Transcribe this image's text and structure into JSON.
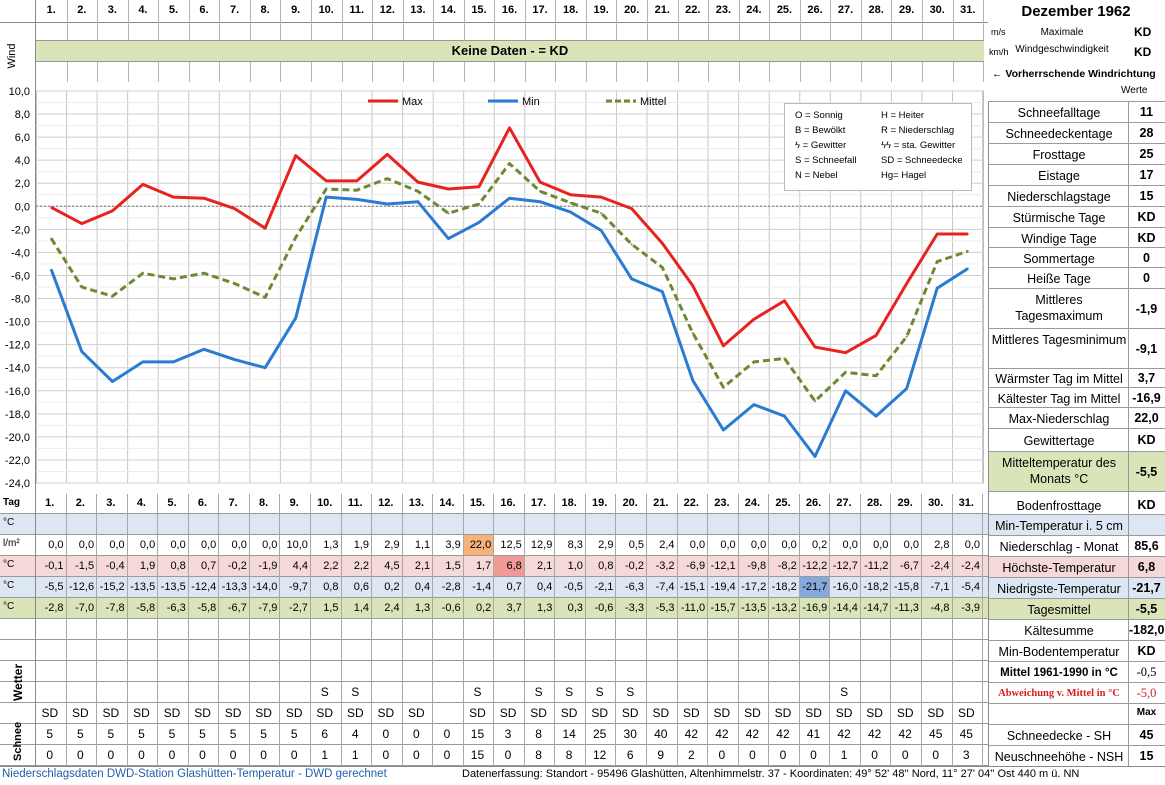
{
  "days": [
    "1.",
    "2.",
    "3.",
    "4.",
    "5.",
    "6.",
    "7.",
    "8.",
    "9.",
    "10.",
    "11.",
    "12.",
    "13.",
    "14.",
    "15.",
    "16.",
    "17.",
    "18.",
    "19.",
    "20.",
    "21.",
    "22.",
    "23.",
    "24.",
    "25.",
    "26.",
    "27.",
    "28.",
    "29.",
    "30.",
    "31."
  ],
  "header": {
    "title": "Dezember 1962",
    "wind_label": "Wind",
    "wind_banner": "Keine Daten -  = KD",
    "unit_ms": "m/s",
    "unit_kmh": "km/h",
    "max_wind_label_1": "Maximale",
    "max_wind_label_2": "Windgeschwindigkeit",
    "max_wind_ms": "KD",
    "max_wind_kmh": "KD",
    "wind_direction_label": "←  Vorherrschende Windrichtung",
    "werte_label": "Werte"
  },
  "legend": {
    "max": "Max",
    "min": "Min",
    "mittel": "Mittel",
    "symbols": [
      [
        "O = Sonnig",
        "H = Heiter"
      ],
      [
        "B = Bewölkt",
        "R = Niederschlag"
      ],
      [
        "ϟ = Gewitter",
        "ϟϟ = sta. Gewitter"
      ],
      [
        "S = Schneefall",
        "SD = Schneedecke"
      ],
      [
        "N = Nebel",
        "Hg= Hagel"
      ]
    ]
  },
  "chart_data": {
    "type": "line",
    "title": "Dezember 1962",
    "x": [
      "1.",
      "2.",
      "3.",
      "4.",
      "5.",
      "6.",
      "7.",
      "8.",
      "9.",
      "10.",
      "11.",
      "12.",
      "13.",
      "14.",
      "15.",
      "16.",
      "17.",
      "18.",
      "19.",
      "20.",
      "21.",
      "22.",
      "23.",
      "24.",
      "25.",
      "26.",
      "27.",
      "28.",
      "29.",
      "30.",
      "31."
    ],
    "ylim": [
      -24,
      10
    ],
    "yticks": [
      "10,0",
      "8,0",
      "6,0",
      "4,0",
      "2,0",
      "0,0",
      "-2,0",
      "-4,0",
      "-6,0",
      "-8,0",
      "-10,0",
      "-12,0",
      "-14,0",
      "-16,0",
      "-18,0",
      "-20,0",
      "-22,0",
      "-24,0"
    ],
    "series": [
      {
        "name": "Max",
        "color": "#e8231f",
        "values": [
          -0.1,
          -1.5,
          -0.4,
          1.9,
          0.8,
          0.7,
          -0.2,
          -1.9,
          4.4,
          2.2,
          2.2,
          4.5,
          2.1,
          1.5,
          1.7,
          6.8,
          2.1,
          1.0,
          0.8,
          -0.2,
          -3.2,
          -6.9,
          -12.1,
          -9.8,
          -8.2,
          -12.2,
          -12.7,
          -11.2,
          -6.7,
          -2.4,
          -2.4
        ]
      },
      {
        "name": "Min",
        "color": "#2b7bd0",
        "values": [
          -5.5,
          -12.6,
          -15.2,
          -13.5,
          -13.5,
          -12.4,
          -13.3,
          -14.0,
          -9.7,
          0.8,
          0.6,
          0.2,
          0.4,
          -2.8,
          -1.4,
          0.7,
          0.4,
          -0.5,
          -2.1,
          -6.3,
          -7.4,
          -15.1,
          -19.4,
          -17.2,
          -18.2,
          -21.7,
          -16.0,
          -18.2,
          -15.8,
          -7.1,
          -5.4
        ]
      },
      {
        "name": "Mittel",
        "color": "#6d8a32",
        "values": [
          -2.8,
          -7.0,
          -7.8,
          -5.8,
          -6.3,
          -5.8,
          -6.7,
          -7.9,
          -2.7,
          1.5,
          1.4,
          2.4,
          1.3,
          -0.6,
          0.2,
          3.7,
          1.3,
          0.3,
          -0.6,
          -3.3,
          -5.3,
          -11.0,
          -15.7,
          -13.5,
          -13.2,
          -16.9,
          -14.4,
          -14.7,
          -11.3,
          -4.8,
          -3.9
        ]
      }
    ]
  },
  "table": {
    "tag_label": "Tag",
    "unit_c": "°C",
    "unit_precip": "l/m²",
    "precip": [
      "0,0",
      "0,0",
      "0,0",
      "0,0",
      "0,0",
      "0,0",
      "0,0",
      "0,0",
      "10,0",
      "1,3",
      "1,9",
      "2,9",
      "1,1",
      "3,9",
      "22,0",
      "12,5",
      "12,9",
      "8,3",
      "2,9",
      "0,5",
      "2,4",
      "0,0",
      "0,0",
      "0,0",
      "0,0",
      "0,2",
      "0,0",
      "0,0",
      "0,0",
      "2,8",
      "0,0"
    ],
    "max": [
      "-0,1",
      "-1,5",
      "-0,4",
      "1,9",
      "0,8",
      "0,7",
      "-0,2",
      "-1,9",
      "4,4",
      "2,2",
      "2,2",
      "4,5",
      "2,1",
      "1,5",
      "1,7",
      "6,8",
      "2,1",
      "1,0",
      "0,8",
      "-0,2",
      "-3,2",
      "-6,9",
      "-12,1",
      "-9,8",
      "-8,2",
      "-12,2",
      "-12,7",
      "-11,2",
      "-6,7",
      "-2,4",
      "-2,4"
    ],
    "min": [
      "-5,5",
      "-12,6",
      "-15,2",
      "-13,5",
      "-13,5",
      "-12,4",
      "-13,3",
      "-14,0",
      "-9,7",
      "0,8",
      "0,6",
      "0,2",
      "0,4",
      "-2,8",
      "-1,4",
      "0,7",
      "0,4",
      "-0,5",
      "-2,1",
      "-6,3",
      "-7,4",
      "-15,1",
      "-19,4",
      "-17,2",
      "-18,2",
      "-21,7",
      "-16,0",
      "-18,2",
      "-15,8",
      "-7,1",
      "-5,4"
    ],
    "mean": [
      "-2,8",
      "-7,0",
      "-7,8",
      "-5,8",
      "-6,3",
      "-5,8",
      "-6,7",
      "-7,9",
      "-2,7",
      "1,5",
      "1,4",
      "2,4",
      "1,3",
      "-0,6",
      "0,2",
      "3,7",
      "1,3",
      "0,3",
      "-0,6",
      "-3,3",
      "-5,3",
      "-11,0",
      "-15,7",
      "-13,5",
      "-13,2",
      "-16,9",
      "-14,4",
      "-14,7",
      "-11,3",
      "-4,8",
      "-3,9"
    ],
    "weather_label": "Wetter",
    "weather_s": [
      "",
      "",
      "",
      "",
      "",
      "",
      "",
      "",
      "",
      "S",
      "S",
      "",
      "",
      "",
      "S",
      "",
      "S",
      "S",
      "S",
      "S",
      "",
      "",
      "",
      "",
      "",
      "",
      "S",
      "",
      "",
      "",
      ""
    ],
    "weather_sd": [
      "SD",
      "SD",
      "SD",
      "SD",
      "SD",
      "SD",
      "SD",
      "SD",
      "SD",
      "SD",
      "SD",
      "SD",
      "SD",
      "",
      "SD",
      "SD",
      "SD",
      "SD",
      "SD",
      "SD",
      "SD",
      "SD",
      "SD",
      "SD",
      "SD",
      "SD",
      "SD",
      "SD",
      "SD",
      "SD",
      "SD"
    ],
    "snow_label": "Schnee",
    "snow_depth": [
      "5",
      "5",
      "5",
      "5",
      "5",
      "5",
      "5",
      "5",
      "5",
      "6",
      "4",
      "0",
      "0",
      "0",
      "15",
      "3",
      "8",
      "14",
      "25",
      "30",
      "40",
      "42",
      "42",
      "42",
      "42",
      "41",
      "42",
      "42",
      "42",
      "45",
      "45"
    ],
    "new_snow": [
      "0",
      "0",
      "0",
      "0",
      "0",
      "0",
      "0",
      "0",
      "0",
      "1",
      "1",
      "0",
      "0",
      "0",
      "15",
      "0",
      "8",
      "8",
      "12",
      "6",
      "9",
      "2",
      "0",
      "0",
      "0",
      "0",
      "1",
      "0",
      "0",
      "0",
      "3"
    ]
  },
  "stats": [
    {
      "label": "Schneefalltage",
      "value": "11"
    },
    {
      "label": "Schneedeckentage",
      "value": "28"
    },
    {
      "label": "Frosttage",
      "value": "25"
    },
    {
      "label": "Eistage",
      "value": "17"
    },
    {
      "label": "Niederschlagstage",
      "value": "15"
    },
    {
      "label": "Stürmische Tage",
      "value": "KD"
    },
    {
      "label": "Windige Tage",
      "value": "KD"
    },
    {
      "label": "Sommertage",
      "value": "0"
    },
    {
      "label": "Heiße Tage",
      "value": "0"
    },
    {
      "label": "Mittleres Tagesmaximum",
      "value": "-1,9"
    },
    {
      "label": "Mittleres Tagesminimum",
      "value": "-9,1"
    },
    {
      "label": "Wärmster Tag im Mittel",
      "value": "3,7"
    },
    {
      "label": "Kältester Tag im Mittel",
      "value": "-16,9"
    },
    {
      "label": "Max-Niederschlag",
      "value": "22,0"
    },
    {
      "label": "Gewittertage",
      "value": "KD"
    },
    {
      "label": "Mitteltemperatur des Monats °C",
      "value": "-5,5"
    },
    {
      "label": "Bodenfrosttage",
      "value": "KD"
    },
    {
      "label": "Min-Temperatur i. 5 cm Höhe",
      "value": ""
    },
    {
      "label": "Niederschlag - Monat",
      "value": "85,6"
    },
    {
      "label": "Höchste-Temperatur",
      "value": "6,8"
    },
    {
      "label": "Niedrigste-Temperatur",
      "value": "-21,7"
    },
    {
      "label": "Tagesmittel",
      "value": "-5,5"
    },
    {
      "label": "Kältesumme",
      "value": "-182,0"
    },
    {
      "label": "Min-Bodentemperatur",
      "value": "KD"
    },
    {
      "label": "Mittel 1961-1990 in °C",
      "value": "-0,5"
    },
    {
      "label": "Abweichung v. Mittel in °C",
      "value": "-5,0"
    },
    {
      "label": "",
      "value": "Max"
    },
    {
      "label": "Schneedecke -  SH",
      "value": "45"
    },
    {
      "label": "Neuschneehöhe - NSH",
      "value": "15"
    }
  ],
  "footer": {
    "left": "Niederschlagsdaten DWD-Station Glashütten-Temperatur -  DWD gerechnet",
    "right": "Datenerfassung: Standort -  95496  Glashütten, Altenhimmelstr. 37 - Koordinaten: 49° 52' 48'' Nord,  11° 27' 04'' Ost   440 m ü. NN"
  },
  "colors": {
    "green_band": "#d9e5b8",
    "blue_band": "#dce7f3",
    "pink_band": "#f4d9d8",
    "highlight_orange": "#f6b27a",
    "highlight_red": "#f09a98",
    "highlight_blue": "#86a9dc",
    "footer_blue": "#1f5fa8"
  }
}
